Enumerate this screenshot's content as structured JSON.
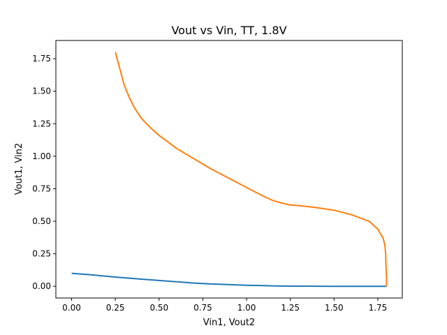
{
  "chart_data": {
    "type": "line",
    "title": "Vout vs Vin, TT, 1.8V",
    "xlabel": "Vin1, Vout2",
    "ylabel": "Vout1, Vin2",
    "xlim": [
      -0.09,
      1.89
    ],
    "ylim": [
      -0.09,
      1.89
    ],
    "xticks": [
      0.0,
      0.25,
      0.5,
      0.75,
      1.0,
      1.25,
      1.5,
      1.75
    ],
    "xtick_labels": [
      "0.00",
      "0.25",
      "0.50",
      "0.75",
      "1.00",
      "1.25",
      "1.50",
      "1.75"
    ],
    "yticks": [
      0.0,
      0.25,
      0.5,
      0.75,
      1.0,
      1.25,
      1.5,
      1.75
    ],
    "ytick_labels": [
      "0.00",
      "0.25",
      "0.50",
      "0.75",
      "1.00",
      "1.25",
      "1.50",
      "1.75"
    ],
    "grid": false,
    "legend": "none",
    "series": [
      {
        "color": "#1f77b4",
        "points": [
          [
            0.0,
            0.1
          ],
          [
            0.1,
            0.09
          ],
          [
            0.25,
            0.071
          ],
          [
            0.4,
            0.055
          ],
          [
            0.5,
            0.045
          ],
          [
            0.6,
            0.035
          ],
          [
            0.7,
            0.025
          ],
          [
            0.8,
            0.018
          ],
          [
            0.9,
            0.013
          ],
          [
            1.0,
            0.008
          ],
          [
            1.1,
            0.005
          ],
          [
            1.2,
            0.002
          ],
          [
            1.3,
            0.001
          ],
          [
            1.4,
            0.0005
          ],
          [
            1.5,
            0.0002
          ],
          [
            1.6,
            0.0001
          ],
          [
            1.7,
            0.0
          ],
          [
            1.8,
            0.0
          ]
        ]
      },
      {
        "color": "#ff7f0e",
        "points": [
          [
            0.25,
            1.8
          ],
          [
            0.27,
            1.7
          ],
          [
            0.3,
            1.55
          ],
          [
            0.33,
            1.45
          ],
          [
            0.36,
            1.37
          ],
          [
            0.4,
            1.29
          ],
          [
            0.45,
            1.22
          ],
          [
            0.5,
            1.16
          ],
          [
            0.55,
            1.11
          ],
          [
            0.6,
            1.06
          ],
          [
            0.7,
            0.98
          ],
          [
            0.8,
            0.9
          ],
          [
            0.9,
            0.83
          ],
          [
            1.0,
            0.76
          ],
          [
            1.1,
            0.69
          ],
          [
            1.15,
            0.66
          ],
          [
            1.2,
            0.64
          ],
          [
            1.25,
            0.625
          ],
          [
            1.3,
            0.62
          ],
          [
            1.4,
            0.605
          ],
          [
            1.5,
            0.585
          ],
          [
            1.6,
            0.55
          ],
          [
            1.7,
            0.5
          ],
          [
            1.75,
            0.44
          ],
          [
            1.78,
            0.37
          ],
          [
            1.79,
            0.32
          ],
          [
            1.795,
            0.25
          ],
          [
            1.797,
            0.15
          ],
          [
            1.8,
            0.05
          ],
          [
            1.8,
            0.0
          ]
        ]
      }
    ]
  }
}
